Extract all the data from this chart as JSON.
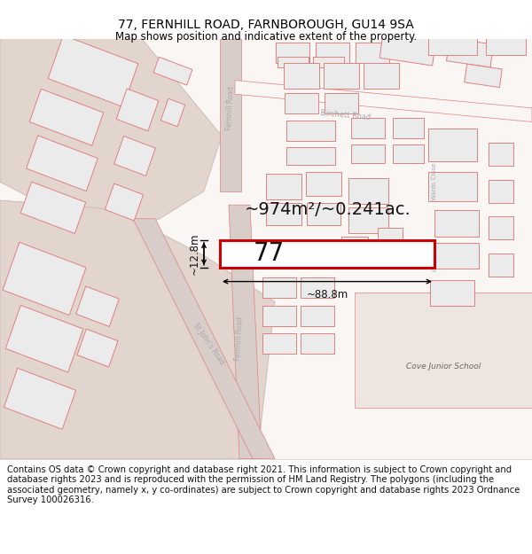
{
  "title": "77, FERNHILL ROAD, FARNBOROUGH, GU14 9SA",
  "subtitle": "Map shows position and indicative extent of the property.",
  "footer": "Contains OS data © Crown copyright and database right 2021. This information is subject to Crown copyright and database rights 2023 and is reproduced with the permission of HM Land Registry. The polygons (including the associated geometry, namely x, y co-ordinates) are subject to Crown copyright and database rights 2023 Ordnance Survey 100026316.",
  "area_label": "~974m²/~0.241ac.",
  "width_label": "~88.8m",
  "height_label": "~12.8m",
  "plot_number": "77",
  "map_bg": "#f9f6f4",
  "road_fill": "#e8ddd8",
  "building_fill": "#ebebeb",
  "building_stroke": "#e08080",
  "road_line": "#e08080",
  "highlight_color": "#cc0000",
  "line_color": "#111111",
  "title_fontsize": 10,
  "subtitle_fontsize": 8.5,
  "footer_fontsize": 7.2,
  "label_color": "#aaaaaa"
}
